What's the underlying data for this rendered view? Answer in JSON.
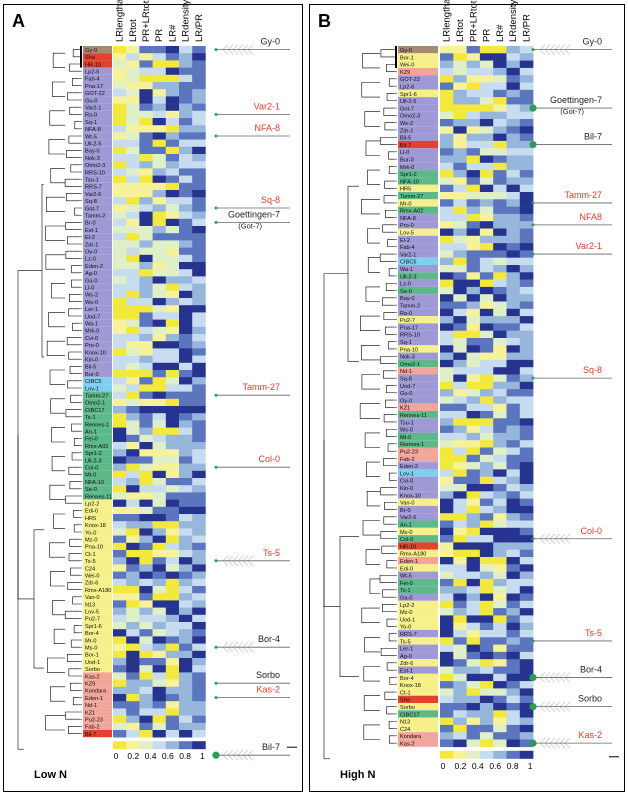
{
  "columns": [
    "LRlengthave",
    "LRtot",
    "PR+LRtot",
    "PR",
    "LR#",
    "LRdensity",
    "LR/PR"
  ],
  "color_scale": {
    "ticks": [
      "0",
      "0.2",
      "0.4",
      "0.6",
      "0.8",
      "1"
    ],
    "colors": [
      "#f2e93c",
      "#f6f29a",
      "#dff0c8",
      "#c7dcee",
      "#97b6dc",
      "#5b76bf",
      "#27348f"
    ]
  },
  "group_colors": {
    "brown": "#a78a74",
    "red": "#e2432f",
    "lavender": "#9f9ad6",
    "blue": "#7fd0ef",
    "teal": "#5db98a",
    "yellow": "#f6f08a",
    "salmon": "#f2a59a"
  },
  "panels": [
    {
      "label": "A",
      "condition": "Low N",
      "accessions": [
        [
          "Gy-0",
          "brown"
        ],
        [
          "Sha",
          "red"
        ],
        [
          "HR-10",
          "red"
        ],
        [
          "Lp2-6",
          "lavender"
        ],
        [
          "Fab-4",
          "lavender"
        ],
        [
          "Pna-17",
          "lavender"
        ],
        [
          "GOT-22",
          "lavender"
        ],
        [
          "Gu-0",
          "lavender"
        ],
        [
          "Var2-1",
          "lavender"
        ],
        [
          "Ra-0",
          "lavender"
        ],
        [
          "Sq-1",
          "lavender"
        ],
        [
          "NFA-8",
          "lavender"
        ],
        [
          "Wt-5",
          "lavender"
        ],
        [
          "Ull-2-5",
          "lavender"
        ],
        [
          "Bay-0",
          "lavender"
        ],
        [
          "Nok-3",
          "lavender"
        ],
        [
          "Omo2-3",
          "lavender"
        ],
        [
          "RRS-10",
          "lavender"
        ],
        [
          "Tsu-1",
          "lavender"
        ],
        [
          "RRS-7",
          "lavender"
        ],
        [
          "Var2-6",
          "lavender"
        ],
        [
          "Sq-8",
          "lavender"
        ],
        [
          "Got-7",
          "lavender"
        ],
        [
          "Tamm-2",
          "lavender"
        ],
        [
          "Br-0",
          "lavender"
        ],
        [
          "Est-1",
          "lavender"
        ],
        [
          "El-2",
          "lavender"
        ],
        [
          "Zdr-1",
          "lavender"
        ],
        [
          "Oy-0",
          "lavender"
        ],
        [
          "Lz-0",
          "lavender"
        ],
        [
          "Eden-2",
          "lavender"
        ],
        [
          "Ag-0",
          "lavender"
        ],
        [
          "Ga-0",
          "lavender"
        ],
        [
          "Ll-0",
          "lavender"
        ],
        [
          "Ws-2",
          "lavender"
        ],
        [
          "Ws-0",
          "lavender"
        ],
        [
          "Ler-1",
          "lavender"
        ],
        [
          "Uod-7",
          "lavender"
        ],
        [
          "Wa-1",
          "lavender"
        ],
        [
          "Mrk-0",
          "lavender"
        ],
        [
          "Cvi-0",
          "lavender"
        ],
        [
          "Pro-0",
          "lavender"
        ],
        [
          "Knox-10",
          "lavender"
        ],
        [
          "Kin-0",
          "lavender"
        ],
        [
          "Bil-5",
          "lavender"
        ],
        [
          "Bur-0",
          "lavender"
        ],
        [
          "CIBC5",
          "blue"
        ],
        [
          "Lov-1",
          "blue"
        ],
        [
          "Tamm-27",
          "teal"
        ],
        [
          "Omo2-1",
          "teal"
        ],
        [
          "CIBC17",
          "teal"
        ],
        [
          "Ts-1",
          "teal"
        ],
        [
          "Rennes-1",
          "teal"
        ],
        [
          "An-1",
          "teal"
        ],
        [
          "Fei-0",
          "teal"
        ],
        [
          "Rmx-A02",
          "teal"
        ],
        [
          "Spr1-2",
          "teal"
        ],
        [
          "Ull-2-3",
          "teal"
        ],
        [
          "Col-0",
          "teal"
        ],
        [
          "Mt-0",
          "teal"
        ],
        [
          "NFA-10",
          "teal"
        ],
        [
          "Se-0",
          "teal"
        ],
        [
          "Rennes-11",
          "teal"
        ],
        [
          "Lp2-2",
          "yellow"
        ],
        [
          "Edi-0",
          "yellow"
        ],
        [
          "HR5",
          "yellow"
        ],
        [
          "Knox-18",
          "yellow"
        ],
        [
          "Yo-0",
          "yellow"
        ],
        [
          "Mz-0",
          "yellow"
        ],
        [
          "Pna-10",
          "yellow"
        ],
        [
          "Ct-1",
          "yellow"
        ],
        [
          "Ts-5",
          "yellow"
        ],
        [
          "C24",
          "yellow"
        ],
        [
          "Wei-0",
          "yellow"
        ],
        [
          "Zdr-6",
          "yellow"
        ],
        [
          "Rmx-A180",
          "yellow"
        ],
        [
          "Van-0",
          "yellow"
        ],
        [
          "N13",
          "yellow"
        ],
        [
          "Lov-5",
          "yellow"
        ],
        [
          "Pu2-7",
          "yellow"
        ],
        [
          "Spr1-6",
          "yellow"
        ],
        [
          "Bor-4",
          "yellow"
        ],
        [
          "Mr-0",
          "yellow"
        ],
        [
          "Ms-0",
          "yellow"
        ],
        [
          "Bor-1",
          "yellow"
        ],
        [
          "Uod-1",
          "yellow"
        ],
        [
          "Sorbo",
          "yellow"
        ],
        [
          "Kas-2",
          "salmon"
        ],
        [
          "KZ9",
          "salmon"
        ],
        [
          "Kondara",
          "salmon"
        ],
        [
          "Eden-1",
          "salmon"
        ],
        [
          "Nd-1",
          "salmon"
        ],
        [
          "KZ1",
          "salmon"
        ],
        [
          "Pu2-23",
          "salmon"
        ],
        [
          "Fab-2",
          "salmon"
        ],
        [
          "Bil-7",
          "red"
        ]
      ],
      "annotations": [
        {
          "row": 0,
          "text": "Gy-0",
          "color": "#222222",
          "side": "fan",
          "dot": "small"
        },
        {
          "row": 9,
          "text": "Var2-1",
          "color": "#e03a2b",
          "side": "line",
          "dot": "small"
        },
        {
          "row": 12,
          "text": "NFA-8",
          "color": "#e03a2b",
          "side": "line",
          "dot": "small"
        },
        {
          "row": 22,
          "text": "Sq-8",
          "color": "#e03a2b",
          "side": "line",
          "dot": "small"
        },
        {
          "row": 24,
          "text": "Goettingen-7",
          "text2": "(Got-7)",
          "color": "#222222",
          "side": "line",
          "dot": "small"
        },
        {
          "row": 48,
          "text": "Tamm-27",
          "color": "#e03a2b",
          "side": "line",
          "dot": "small"
        },
        {
          "row": 58,
          "text": "Col-0",
          "color": "#e03a2b",
          "side": "line",
          "dot": "small"
        },
        {
          "row": 71,
          "text": "Ts-5",
          "color": "#e03a2b",
          "side": "fan",
          "dot": "small"
        },
        {
          "row": 83,
          "text": "Bor-4",
          "color": "#222222",
          "side": "fan",
          "dot": "small"
        },
        {
          "row": 88,
          "text": "Sorbo",
          "color": "#222222",
          "side": "line",
          "dot": "small"
        },
        {
          "row": 90,
          "text": "Kas-2",
          "color": "#e03a2b",
          "side": "line",
          "dot": "small"
        },
        {
          "row": 98,
          "text": "Bil-7",
          "color": "#222222",
          "side": "fan",
          "dot": "big"
        }
      ]
    },
    {
      "label": "B",
      "condition": "High N",
      "accessions": [
        [
          "Gy-0",
          "brown"
        ],
        [
          "Bor-1",
          "yellow"
        ],
        [
          "Wei-0",
          "yellow"
        ],
        [
          "KZ9",
          "salmon"
        ],
        [
          "GOT-22",
          "lavender"
        ],
        [
          "Lp2-6",
          "lavender"
        ],
        [
          "Spr1-6",
          "yellow"
        ],
        [
          "Ull-2-5",
          "lavender"
        ],
        [
          "Got-7",
          "lavender"
        ],
        [
          "Omo2-3",
          "lavender"
        ],
        [
          "Ws-2",
          "lavender"
        ],
        [
          "Zdr-1",
          "lavender"
        ],
        [
          "Bil-5",
          "lavender"
        ],
        [
          "Bil-7",
          "red"
        ],
        [
          "Ll-0",
          "lavender"
        ],
        [
          "Bur-0",
          "lavender"
        ],
        [
          "Mrk-0",
          "lavender"
        ],
        [
          "Spr1-2",
          "teal"
        ],
        [
          "NFA-10",
          "teal"
        ],
        [
          "HR5",
          "yellow"
        ],
        [
          "Tamm-27",
          "teal"
        ],
        [
          "Mr-0",
          "yellow"
        ],
        [
          "Rmx-A02",
          "teal"
        ],
        [
          "NFA-8",
          "lavender"
        ],
        [
          "Pro-0",
          "lavender"
        ],
        [
          "Lov-5",
          "yellow"
        ],
        [
          "El-2",
          "lavender"
        ],
        [
          "Fab-4",
          "lavender"
        ],
        [
          "Var2-1",
          "lavender"
        ],
        [
          "CIBC5",
          "blue"
        ],
        [
          "Wa-1",
          "lavender"
        ],
        [
          "Ull-2-3",
          "teal"
        ],
        [
          "Lz-0",
          "lavender"
        ],
        [
          "Se-0",
          "teal"
        ],
        [
          "Bay-0",
          "lavender"
        ],
        [
          "Tamm-2",
          "lavender"
        ],
        [
          "Ra-0",
          "lavender"
        ],
        [
          "Pu2-7",
          "yellow"
        ],
        [
          "Pna-17",
          "lavender"
        ],
        [
          "RRS-10",
          "lavender"
        ],
        [
          "Sq-1",
          "lavender"
        ],
        [
          "Pna-10",
          "yellow"
        ],
        [
          "Nok-3",
          "lavender"
        ],
        [
          "Omo2-1",
          "teal"
        ],
        [
          "Nd-1",
          "salmon"
        ],
        [
          "Sq-8",
          "lavender"
        ],
        [
          "Uod-7",
          "lavender"
        ],
        [
          "Gu-0",
          "lavender"
        ],
        [
          "Oy-0",
          "lavender"
        ],
        [
          "KZ1",
          "salmon"
        ],
        [
          "Rennes-11",
          "teal"
        ],
        [
          "Tsu-1",
          "lavender"
        ],
        [
          "Ws-0",
          "lavender"
        ],
        [
          "Mt-0",
          "teal"
        ],
        [
          "Rennes-1",
          "teal"
        ],
        [
          "Pu2-23",
          "salmon"
        ],
        [
          "Fab-2",
          "salmon"
        ],
        [
          "Eden-2",
          "lavender"
        ],
        [
          "Lov-1",
          "blue"
        ],
        [
          "Cvi-0",
          "lavender"
        ],
        [
          "Kin-0",
          "lavender"
        ],
        [
          "Knox-10",
          "lavender"
        ],
        [
          "Van-0",
          "yellow"
        ],
        [
          "Br-0",
          "lavender"
        ],
        [
          "Var2-6",
          "lavender"
        ],
        [
          "An-1",
          "teal"
        ],
        [
          "Ms-0",
          "yellow"
        ],
        [
          "Col-0",
          "teal"
        ],
        [
          "HR-10",
          "red"
        ],
        [
          "Rmx-A180",
          "yellow"
        ],
        [
          "Eden-1",
          "salmon"
        ],
        [
          "Edi-0",
          "yellow"
        ],
        [
          "Wt-5",
          "lavender"
        ],
        [
          "Fei-0",
          "teal"
        ],
        [
          "Ts-1",
          "teal"
        ],
        [
          "Ga-0",
          "lavender"
        ],
        [
          "Lp2-2",
          "yellow"
        ],
        [
          "Mz-0",
          "yellow"
        ],
        [
          "Uod-1",
          "yellow"
        ],
        [
          "Yo-0",
          "yellow"
        ],
        [
          "RRS-7",
          "lavender"
        ],
        [
          "Ts-5",
          "yellow"
        ],
        [
          "Ler-1",
          "lavender"
        ],
        [
          "Ag-0",
          "lavender"
        ],
        [
          "Zdr-6",
          "yellow"
        ],
        [
          "Est-1",
          "lavender"
        ],
        [
          "Bor-4",
          "yellow"
        ],
        [
          "Knox-18",
          "yellow"
        ],
        [
          "Ct-1",
          "yellow"
        ],
        [
          "Sha",
          "red"
        ],
        [
          "Sorbo",
          "yellow"
        ],
        [
          "CIBC17",
          "teal"
        ],
        [
          "N13",
          "yellow"
        ],
        [
          "C24",
          "yellow"
        ],
        [
          "Kondara",
          "salmon"
        ],
        [
          "Kas-2",
          "salmon"
        ]
      ],
      "annotations": [
        {
          "row": 0,
          "text": "Gy-0",
          "color": "#222222",
          "side": "fan",
          "dot": "small"
        },
        {
          "row": 8,
          "text": "Goettingen-7",
          "text2": "(Got-7)",
          "color": "#222222",
          "side": "line",
          "dot": "big"
        },
        {
          "row": 13,
          "text": "Bil-7",
          "color": "#222222",
          "side": "line",
          "dot": "big"
        },
        {
          "row": 21,
          "text": "Tamm-27",
          "color": "#e03a2b",
          "side": "line",
          "dot": "small"
        },
        {
          "row": 24,
          "text": "NFA8",
          "color": "#e03a2b",
          "side": "line",
          "dot": "small"
        },
        {
          "row": 28,
          "text": "Var2-1",
          "color": "#e03a2b",
          "side": "line",
          "dot": "small"
        },
        {
          "row": 45,
          "text": "Sq-8",
          "color": "#e03a2b",
          "side": "line",
          "dot": "small"
        },
        {
          "row": 67,
          "text": "Col-0",
          "color": "#e03a2b",
          "side": "fan",
          "dot": "small"
        },
        {
          "row": 81,
          "text": "Ts-5",
          "color": "#e03a2b",
          "side": "line",
          "dot": "small"
        },
        {
          "row": 86,
          "text": "Bor-4",
          "color": "#222222",
          "side": "fan",
          "dot": "big"
        },
        {
          "row": 90,
          "text": "Sorbo",
          "color": "#222222",
          "side": "fan",
          "dot": "big"
        },
        {
          "row": 95,
          "text": "Kas-2",
          "color": "#e03a2b",
          "side": "fan",
          "dot": "big"
        }
      ]
    }
  ]
}
